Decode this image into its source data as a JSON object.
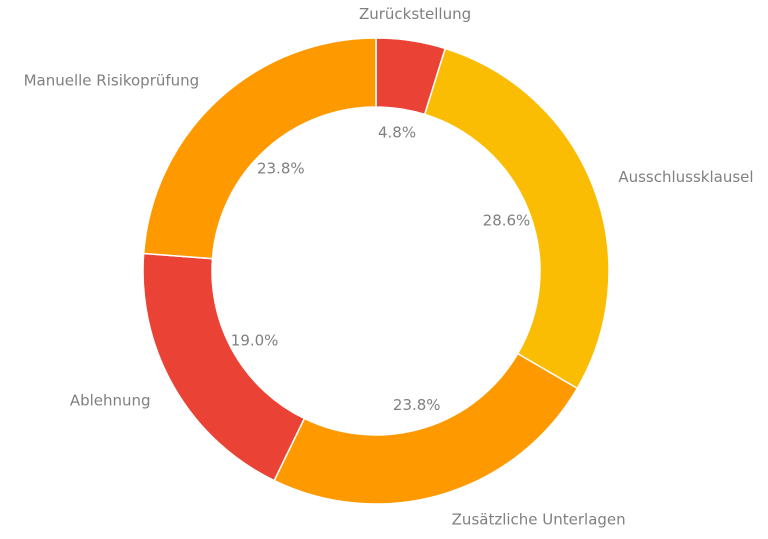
{
  "chart_data": {
    "type": "pie",
    "variant": "donut",
    "title": "",
    "start_angle_deg": 0,
    "direction": "clockwise",
    "slices": [
      {
        "label": "Zurückstellung",
        "value": 4.8,
        "display": "4.8%",
        "color": "#ea4335"
      },
      {
        "label": "Ausschlussklausel",
        "value": 28.6,
        "display": "28.6%",
        "color": "#fbbc04"
      },
      {
        "label": "Zusätzliche Unterlagen",
        "value": 23.8,
        "display": "23.8%",
        "color": "#ff9900"
      },
      {
        "label": "Ablehnung",
        "value": 19.0,
        "display": "19.0%",
        "color": "#ea4335"
      },
      {
        "label": "Manuelle Risikoprüfung",
        "value": 23.8,
        "display": "23.8%",
        "color": "#ff9900"
      }
    ],
    "legend": "none"
  }
}
